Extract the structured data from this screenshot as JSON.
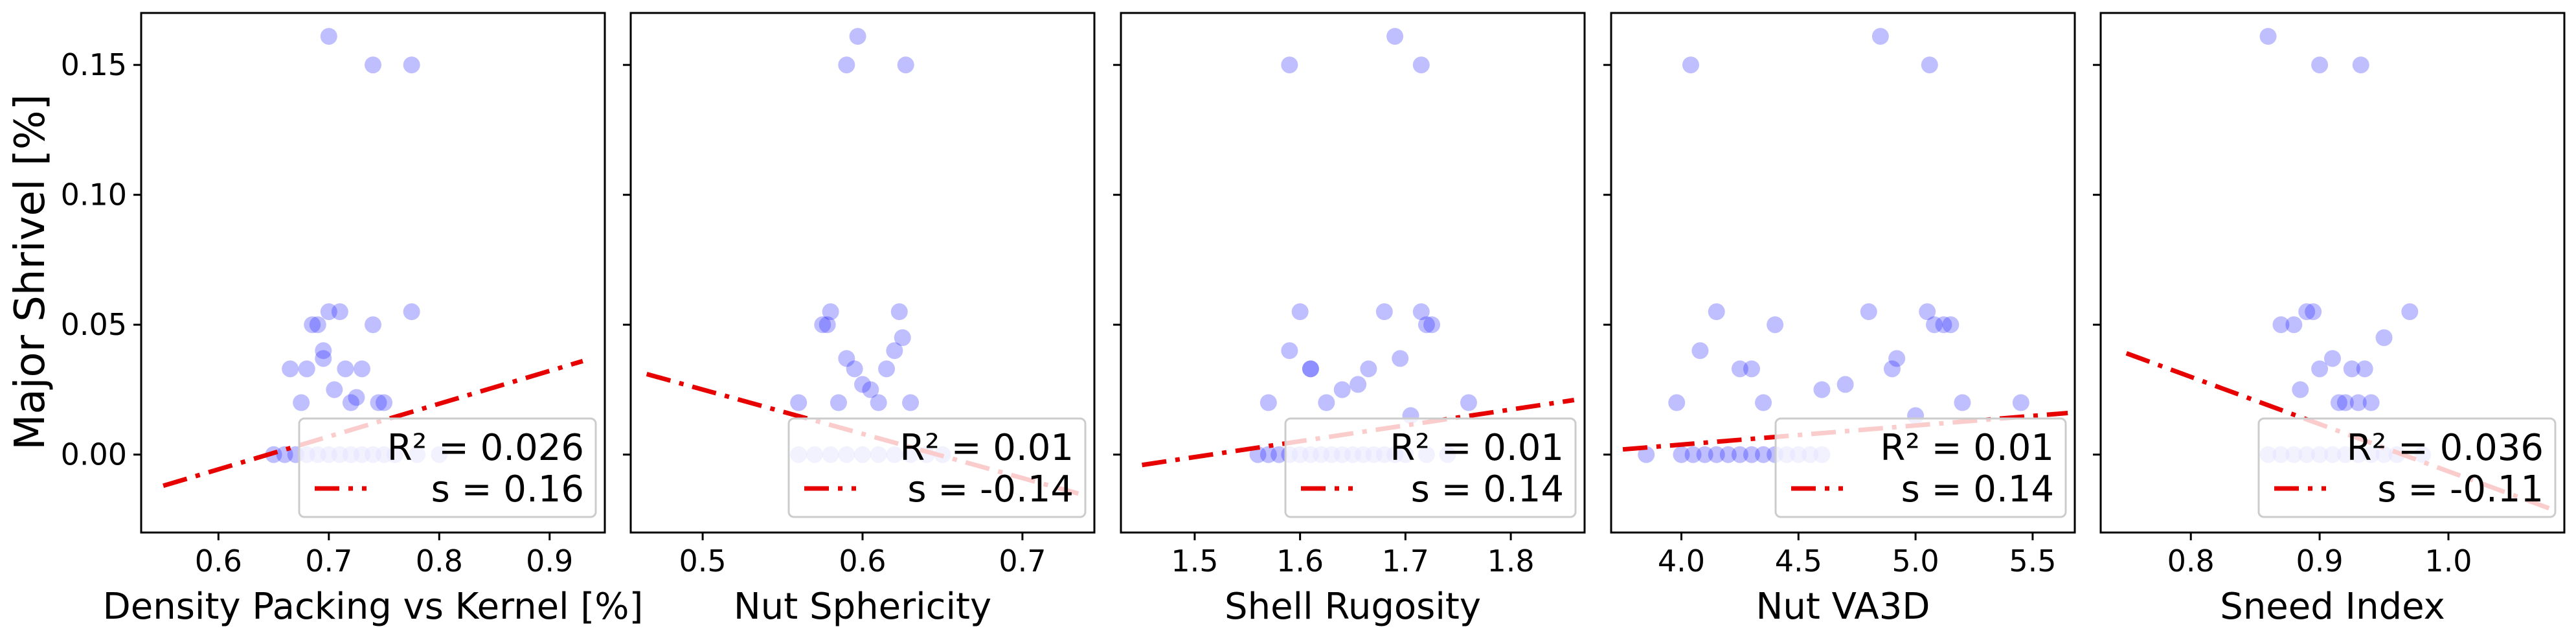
{
  "figure": {
    "ylabel": "Major Shrivel [%]"
  },
  "style": {
    "point_color": "#0000ff",
    "fit_color": "#e60000",
    "legend_border": "#cccccc"
  },
  "chart_data": [
    {
      "type": "scatter",
      "xlabel": "Density Packing vs Kernel [%]",
      "ylabel": "Major Shrivel [%]",
      "xlim": [
        0.53,
        0.95
      ],
      "ylim": [
        -0.03,
        0.17
      ],
      "xticks": [
        {
          "value": 0.6,
          "label": "0.6"
        },
        {
          "value": 0.7,
          "label": "0.7"
        },
        {
          "value": 0.8,
          "label": "0.8"
        },
        {
          "value": 0.9,
          "label": "0.9"
        }
      ],
      "yticks": [
        {
          "value": 0.0,
          "label": "0.00"
        },
        {
          "value": 0.05,
          "label": "0.05"
        },
        {
          "value": 0.1,
          "label": "0.10"
        },
        {
          "value": 0.15,
          "label": "0.15"
        }
      ],
      "points": [
        [
          0.7,
          0.161
        ],
        [
          0.74,
          0.15
        ],
        [
          0.775,
          0.15
        ],
        [
          0.665,
          0.033
        ],
        [
          0.675,
          0.02
        ],
        [
          0.68,
          0.033
        ],
        [
          0.685,
          0.05
        ],
        [
          0.69,
          0.05
        ],
        [
          0.695,
          0.04
        ],
        [
          0.695,
          0.037
        ],
        [
          0.7,
          0.055
        ],
        [
          0.705,
          0.025
        ],
        [
          0.71,
          0.055
        ],
        [
          0.715,
          0.033
        ],
        [
          0.72,
          0.02
        ],
        [
          0.725,
          0.022
        ],
        [
          0.73,
          0.033
        ],
        [
          0.74,
          0.05
        ],
        [
          0.745,
          0.02
        ],
        [
          0.75,
          0.02
        ],
        [
          0.775,
          0.055
        ],
        [
          0.65,
          0.0
        ],
        [
          0.66,
          0.0
        ],
        [
          0.67,
          0.0
        ],
        [
          0.68,
          0.0
        ],
        [
          0.69,
          0.0
        ],
        [
          0.7,
          0.0
        ],
        [
          0.71,
          0.0
        ],
        [
          0.72,
          0.0
        ],
        [
          0.73,
          0.0
        ],
        [
          0.74,
          0.0
        ],
        [
          0.75,
          0.0
        ],
        [
          0.76,
          0.0
        ],
        [
          0.78,
          0.0
        ],
        [
          0.8,
          0.0
        ]
      ],
      "fit": {
        "x": [
          0.55,
          0.93
        ],
        "y": [
          -0.012,
          0.036
        ]
      },
      "legend": {
        "r2": "R² = 0.026",
        "s": "s   = 0.16"
      }
    },
    {
      "type": "scatter",
      "xlabel": "Nut Sphericity",
      "ylabel": "",
      "xlim": [
        0.455,
        0.745
      ],
      "ylim": [
        -0.03,
        0.17
      ],
      "xticks": [
        {
          "value": 0.5,
          "label": "0.5"
        },
        {
          "value": 0.6,
          "label": "0.6"
        },
        {
          "value": 0.7,
          "label": "0.7"
        }
      ],
      "yticks": [
        {
          "value": 0.0,
          "label": ""
        },
        {
          "value": 0.05,
          "label": ""
        },
        {
          "value": 0.1,
          "label": ""
        },
        {
          "value": 0.15,
          "label": ""
        }
      ],
      "points": [
        [
          0.597,
          0.161
        ],
        [
          0.59,
          0.15
        ],
        [
          0.627,
          0.15
        ],
        [
          0.56,
          0.02
        ],
        [
          0.575,
          0.05
        ],
        [
          0.58,
          0.055
        ],
        [
          0.585,
          0.02
        ],
        [
          0.59,
          0.037
        ],
        [
          0.595,
          0.033
        ],
        [
          0.6,
          0.027
        ],
        [
          0.605,
          0.025
        ],
        [
          0.61,
          0.02
        ],
        [
          0.615,
          0.033
        ],
        [
          0.62,
          0.04
        ],
        [
          0.623,
          0.055
        ],
        [
          0.625,
          0.045
        ],
        [
          0.63,
          0.02
        ],
        [
          0.578,
          0.05
        ],
        [
          0.56,
          0.0
        ],
        [
          0.57,
          0.0
        ],
        [
          0.58,
          0.0
        ],
        [
          0.59,
          0.0
        ],
        [
          0.6,
          0.0
        ],
        [
          0.61,
          0.0
        ],
        [
          0.62,
          0.0
        ],
        [
          0.63,
          0.0
        ],
        [
          0.64,
          0.0
        ],
        [
          0.65,
          0.0
        ]
      ],
      "fit": {
        "x": [
          0.465,
          0.735
        ],
        "y": [
          0.031,
          -0.015
        ]
      },
      "legend": {
        "r2": "R² = 0.01",
        "s": "s   = -0.14"
      }
    },
    {
      "type": "scatter",
      "xlabel": "Shell Rugosity",
      "ylabel": "",
      "xlim": [
        1.43,
        1.87
      ],
      "ylim": [
        -0.03,
        0.17
      ],
      "xticks": [
        {
          "value": 1.5,
          "label": "1.5"
        },
        {
          "value": 1.6,
          "label": "1.6"
        },
        {
          "value": 1.7,
          "label": "1.7"
        },
        {
          "value": 1.8,
          "label": "1.8"
        }
      ],
      "yticks": [
        {
          "value": 0.0,
          "label": ""
        },
        {
          "value": 0.05,
          "label": ""
        },
        {
          "value": 0.1,
          "label": ""
        },
        {
          "value": 0.15,
          "label": ""
        }
      ],
      "points": [
        [
          1.69,
          0.161
        ],
        [
          1.59,
          0.15
        ],
        [
          1.715,
          0.15
        ],
        [
          1.57,
          0.02
        ],
        [
          1.59,
          0.04
        ],
        [
          1.6,
          0.055
        ],
        [
          1.61,
          0.033
        ],
        [
          1.625,
          0.02
        ],
        [
          1.64,
          0.025
        ],
        [
          1.655,
          0.027
        ],
        [
          1.665,
          0.033
        ],
        [
          1.68,
          0.055
        ],
        [
          1.695,
          0.037
        ],
        [
          1.705,
          0.015
        ],
        [
          1.715,
          0.055
        ],
        [
          1.72,
          0.05
        ],
        [
          1.725,
          0.05
        ],
        [
          1.76,
          0.02
        ],
        [
          1.61,
          0.033
        ],
        [
          1.56,
          0.0
        ],
        [
          1.57,
          0.0
        ],
        [
          1.58,
          0.0
        ],
        [
          1.59,
          0.0
        ],
        [
          1.6,
          0.0
        ],
        [
          1.61,
          0.0
        ],
        [
          1.62,
          0.0
        ],
        [
          1.63,
          0.0
        ],
        [
          1.64,
          0.0
        ],
        [
          1.65,
          0.0
        ],
        [
          1.66,
          0.0
        ],
        [
          1.67,
          0.0
        ],
        [
          1.68,
          0.0
        ],
        [
          1.69,
          0.0
        ],
        [
          1.7,
          0.0
        ],
        [
          1.72,
          0.0
        ],
        [
          1.74,
          0.0
        ]
      ],
      "fit": {
        "x": [
          1.45,
          1.86
        ],
        "y": [
          -0.004,
          0.021
        ]
      },
      "legend": {
        "r2": "R² = 0.01",
        "s": "s   = 0.14"
      }
    },
    {
      "type": "scatter",
      "xlabel": "Nut VA3D",
      "ylabel": "",
      "xlim": [
        3.7,
        5.68
      ],
      "ylim": [
        -0.03,
        0.17
      ],
      "xticks": [
        {
          "value": 4.0,
          "label": "4.0"
        },
        {
          "value": 4.5,
          "label": "4.5"
        },
        {
          "value": 5.0,
          "label": "5.0"
        },
        {
          "value": 5.5,
          "label": "5.5"
        }
      ],
      "yticks": [
        {
          "value": 0.0,
          "label": ""
        },
        {
          "value": 0.05,
          "label": ""
        },
        {
          "value": 0.1,
          "label": ""
        },
        {
          "value": 0.15,
          "label": ""
        }
      ],
      "points": [
        [
          4.85,
          0.161
        ],
        [
          4.04,
          0.15
        ],
        [
          5.06,
          0.15
        ],
        [
          3.85,
          0.0
        ],
        [
          3.98,
          0.02
        ],
        [
          4.08,
          0.04
        ],
        [
          4.15,
          0.055
        ],
        [
          4.25,
          0.033
        ],
        [
          4.3,
          0.033
        ],
        [
          4.35,
          0.02
        ],
        [
          4.4,
          0.05
        ],
        [
          4.6,
          0.025
        ],
        [
          4.7,
          0.027
        ],
        [
          4.8,
          0.055
        ],
        [
          4.9,
          0.033
        ],
        [
          4.92,
          0.037
        ],
        [
          5.0,
          0.015
        ],
        [
          5.05,
          0.055
        ],
        [
          5.08,
          0.05
        ],
        [
          5.12,
          0.05
        ],
        [
          5.15,
          0.05
        ],
        [
          5.2,
          0.02
        ],
        [
          5.45,
          0.02
        ],
        [
          4.0,
          0.0
        ],
        [
          4.05,
          0.0
        ],
        [
          4.1,
          0.0
        ],
        [
          4.15,
          0.0
        ],
        [
          4.2,
          0.0
        ],
        [
          4.25,
          0.0
        ],
        [
          4.3,
          0.0
        ],
        [
          4.35,
          0.0
        ],
        [
          4.4,
          0.0
        ],
        [
          4.45,
          0.0
        ],
        [
          4.5,
          0.0
        ],
        [
          4.55,
          0.0
        ],
        [
          4.6,
          0.0
        ]
      ],
      "fit": {
        "x": [
          3.75,
          5.65
        ],
        "y": [
          0.002,
          0.016
        ]
      },
      "legend": {
        "r2": "R² = 0.01",
        "s": "s   = 0.14"
      }
    },
    {
      "type": "scatter",
      "xlabel": "Sneed Index",
      "ylabel": "",
      "xlim": [
        0.73,
        1.09
      ],
      "ylim": [
        -0.03,
        0.17
      ],
      "xticks": [
        {
          "value": 0.8,
          "label": "0.8"
        },
        {
          "value": 0.9,
          "label": "0.9"
        },
        {
          "value": 1.0,
          "label": "1.0"
        }
      ],
      "yticks": [
        {
          "value": 0.0,
          "label": ""
        },
        {
          "value": 0.05,
          "label": ""
        },
        {
          "value": 0.1,
          "label": ""
        },
        {
          "value": 0.15,
          "label": ""
        }
      ],
      "points": [
        [
          0.86,
          0.161
        ],
        [
          0.9,
          0.15
        ],
        [
          0.932,
          0.15
        ],
        [
          0.87,
          0.05
        ],
        [
          0.88,
          0.05
        ],
        [
          0.885,
          0.025
        ],
        [
          0.89,
          0.055
        ],
        [
          0.895,
          0.055
        ],
        [
          0.9,
          0.033
        ],
        [
          0.91,
          0.037
        ],
        [
          0.915,
          0.02
        ],
        [
          0.92,
          0.02
        ],
        [
          0.925,
          0.033
        ],
        [
          0.93,
          0.02
        ],
        [
          0.935,
          0.033
        ],
        [
          0.94,
          0.02
        ],
        [
          0.95,
          0.045
        ],
        [
          0.97,
          0.055
        ],
        [
          0.86,
          0.0
        ],
        [
          0.87,
          0.0
        ],
        [
          0.88,
          0.0
        ],
        [
          0.89,
          0.0
        ],
        [
          0.9,
          0.0
        ],
        [
          0.91,
          0.0
        ],
        [
          0.92,
          0.0
        ],
        [
          0.93,
          0.0
        ],
        [
          0.94,
          0.0
        ],
        [
          0.95,
          0.0
        ],
        [
          0.96,
          0.0
        ],
        [
          0.98,
          0.0
        ]
      ],
      "fit": {
        "x": [
          0.75,
          1.08
        ],
        "y": [
          0.039,
          -0.021
        ]
      },
      "legend": {
        "r2": "R² = 0.036",
        "s": "s   = -0.11"
      }
    }
  ]
}
